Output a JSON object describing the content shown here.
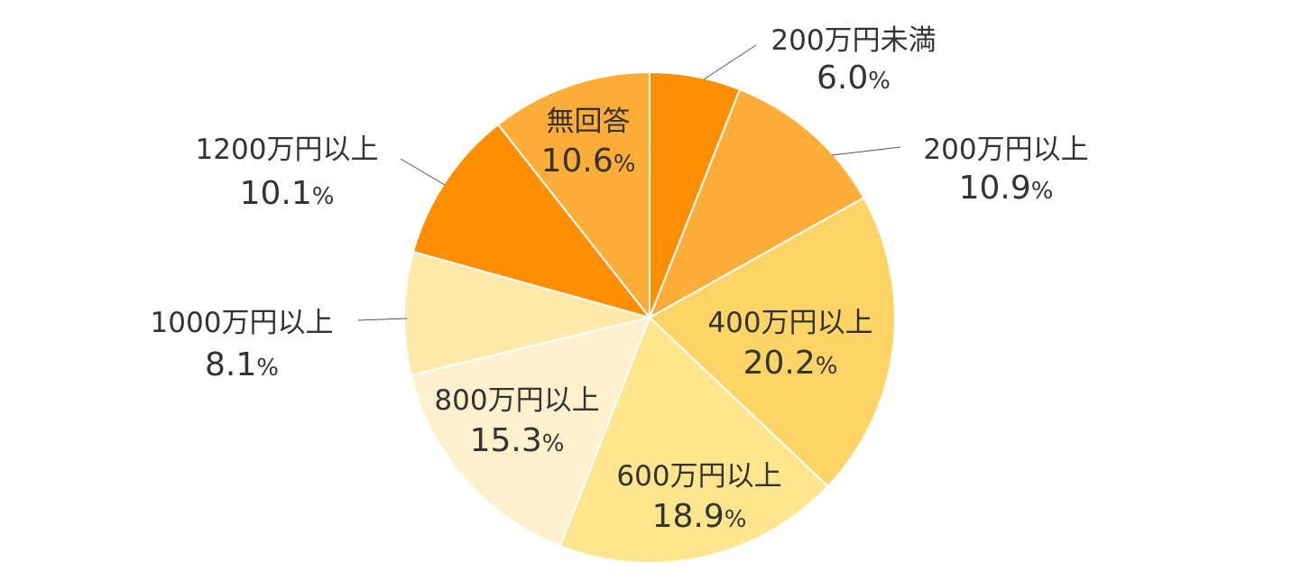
{
  "chart_data": {
    "type": "pie",
    "start": "top",
    "direction": "clockwise",
    "slices": [
      {
        "label": "200万円未満",
        "value": 6.0,
        "display": "6.0",
        "color": "#FF8F00"
      },
      {
        "label": "200万円以上",
        "value": 10.9,
        "display": "10.9",
        "color": "#FFAD38"
      },
      {
        "label": "400万円以上",
        "value": 20.2,
        "display": "20.2",
        "color": "#FFD466"
      },
      {
        "label": "600万円以上",
        "value": 18.9,
        "display": "18.9",
        "color": "#FFE68E"
      },
      {
        "label": "800万円以上",
        "value": 15.3,
        "display": "15.3",
        "color": "#FFF1CE"
      },
      {
        "label": "1000万円以上",
        "value": 8.1,
        "display": "8.1",
        "color": "#FFE9AA"
      },
      {
        "label": "1200万円以上",
        "value": 10.1,
        "display": "10.1",
        "color": "#FF8F00"
      },
      {
        "label": "無回答",
        "value": 10.6,
        "display": "10.6",
        "color": "#FFAD38"
      }
    ],
    "unit": "%"
  }
}
